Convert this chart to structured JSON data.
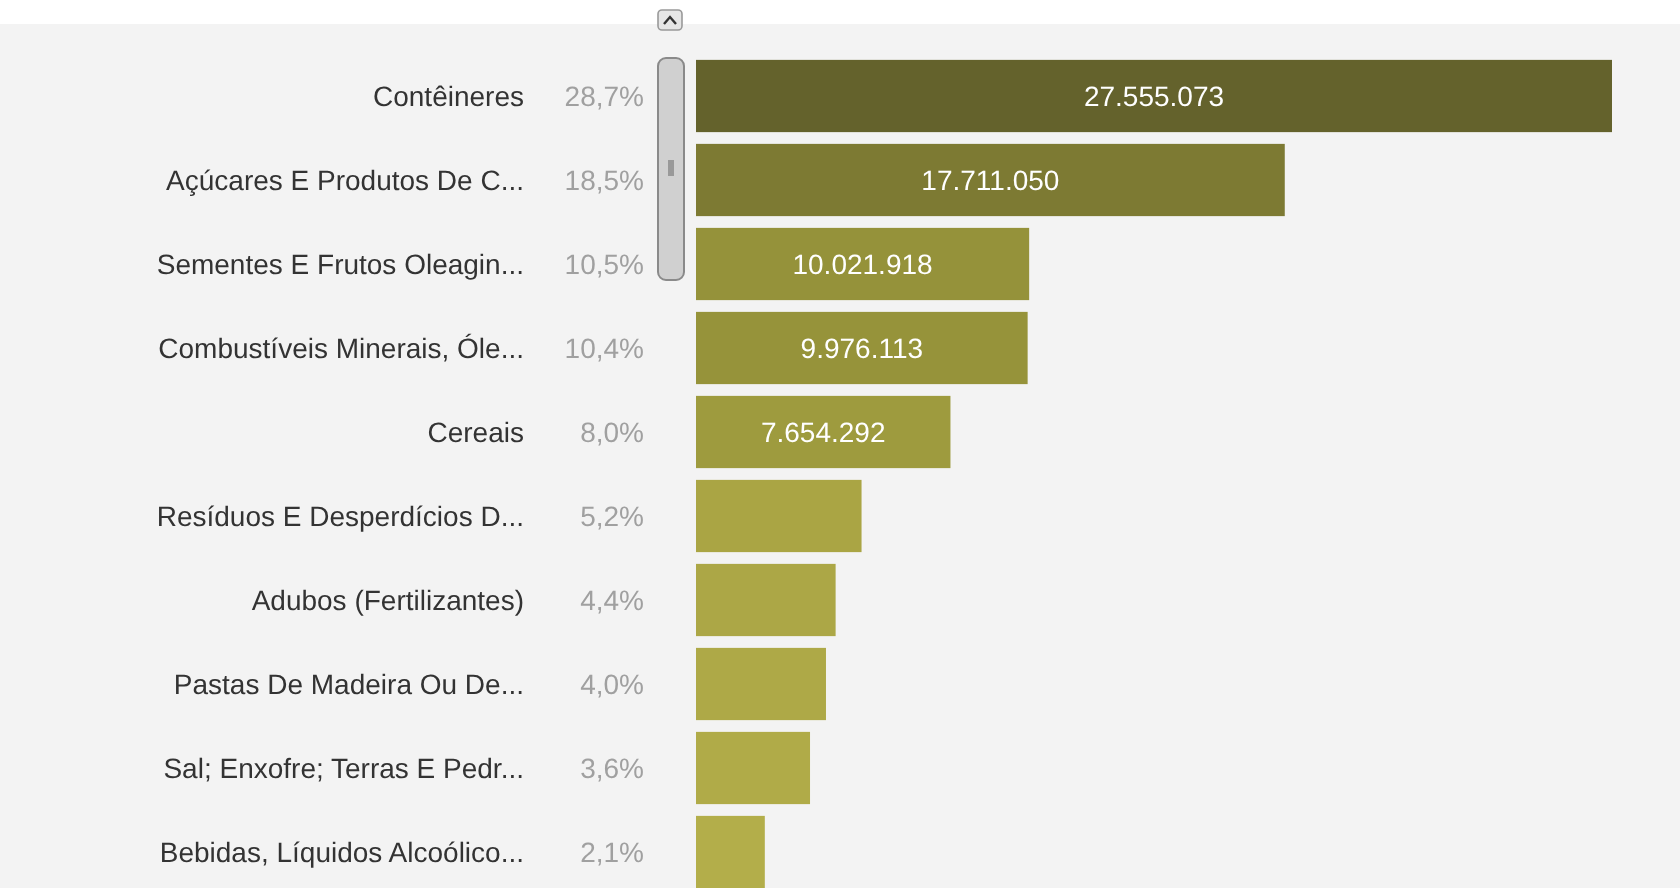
{
  "chart_data": {
    "type": "bar",
    "orientation": "horizontal",
    "relative": false,
    "categories": [
      "Contêineres",
      "Açúcares E Produtos De C...",
      "Sementes E Frutos Oleagin...",
      "Combustíveis Minerais, Óle...",
      "Cereais",
      "Resíduos E Desperdícios D...",
      "Adubos (Fertilizantes)",
      "Pastas De Madeira Ou De...",
      "Sal; Enxofre; Terras E Pedr...",
      "Bebidas, Líquidos Alcoólico..."
    ],
    "values": [
      27555073,
      17711050,
      10021918,
      9976113,
      7654292,
      4980000,
      4200000,
      3910000,
      3430000,
      2070000
    ],
    "value_labels": [
      "27.555.073",
      "17.711.050",
      "10.021.918",
      "9.976.113",
      "7.654.292",
      null,
      null,
      null,
      null,
      null
    ],
    "colors": [
      "#64622c",
      "#7d7a33",
      "#95923a",
      "#96933a",
      "#9e9b3e",
      "#aaa544",
      "#aca746",
      "#aea947",
      "#b0ab48",
      "#b3ae4a"
    ],
    "annotations": [
      "28,7%",
      "18,5%",
      "10,5%",
      "10,4%",
      "8,0%",
      "5,2%",
      "4,4%",
      "4,0%",
      "3,6%",
      "2,1%"
    ]
  }
}
